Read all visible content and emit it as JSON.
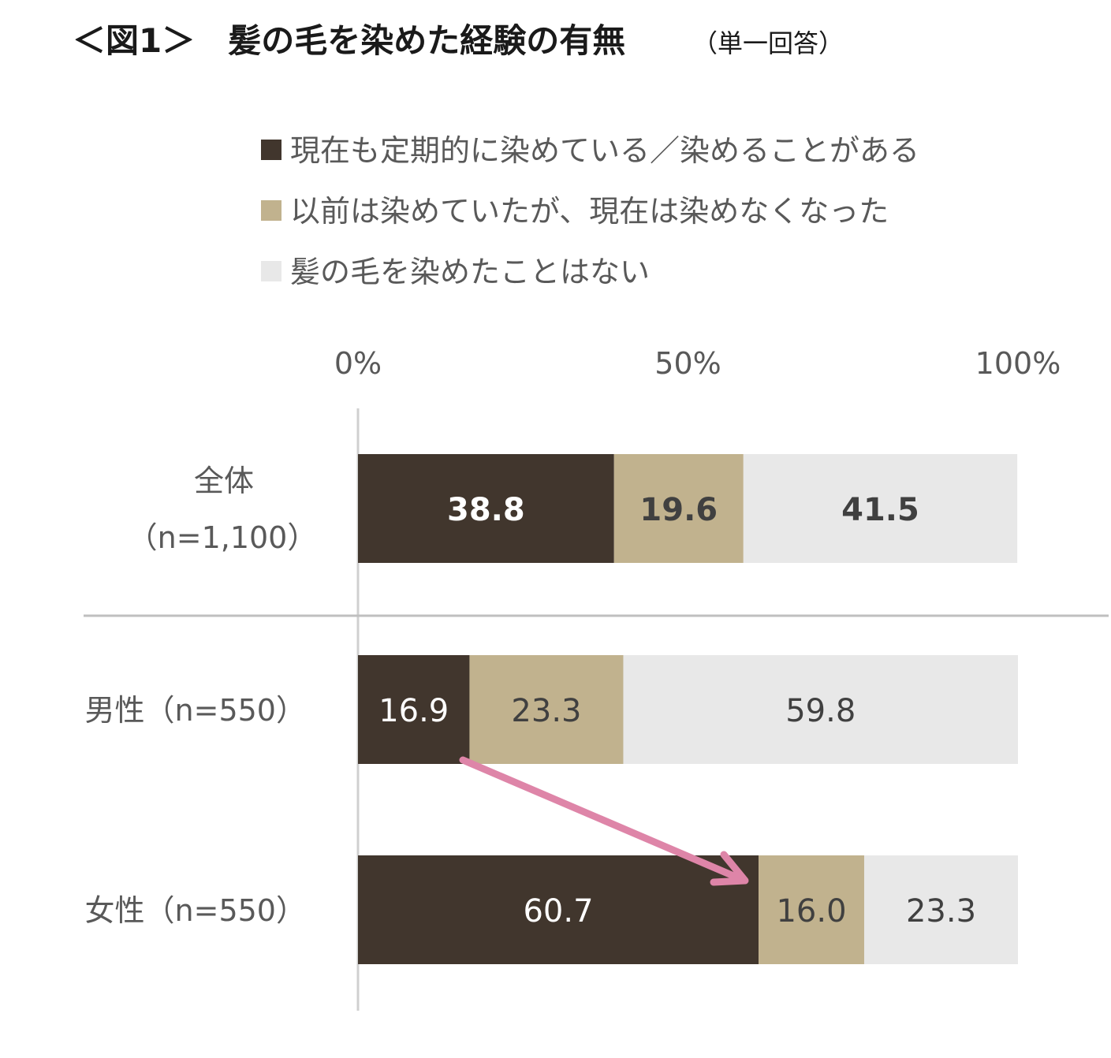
{
  "title": "＜図1＞　髪の毛を染めた経験の有無",
  "subtitle": "（単一回答）",
  "chart_data": {
    "type": "bar",
    "orientation": "horizontal",
    "stacked": true,
    "percent": true,
    "categories": [
      {
        "line1": "全体",
        "line2": "（n=1,100）"
      },
      {
        "line1": "男性（n=550）",
        "line2": ""
      },
      {
        "line1": "女性（n=550）",
        "line2": ""
      }
    ],
    "series": [
      {
        "name": "現在も定期的に染めている／染めることがある",
        "color": "#41362d",
        "values": [
          38.8,
          16.9,
          60.7
        ]
      },
      {
        "name": "以前は染めていたが、現在は染めなくなった",
        "color": "#c1b28e",
        "values": [
          19.6,
          23.3,
          16.0
        ]
      },
      {
        "name": "髪の毛を染めたことはない",
        "color": "#e8e8e8",
        "values": [
          41.5,
          59.8,
          23.3
        ]
      }
    ],
    "xticks": [
      "0%",
      "50%",
      "100%"
    ],
    "xlim": [
      0,
      100
    ],
    "legend_position": "top",
    "highlight_arrow": {
      "from": "男性（n=550）",
      "to": "女性（n=550）",
      "color": "#de85a8"
    }
  }
}
